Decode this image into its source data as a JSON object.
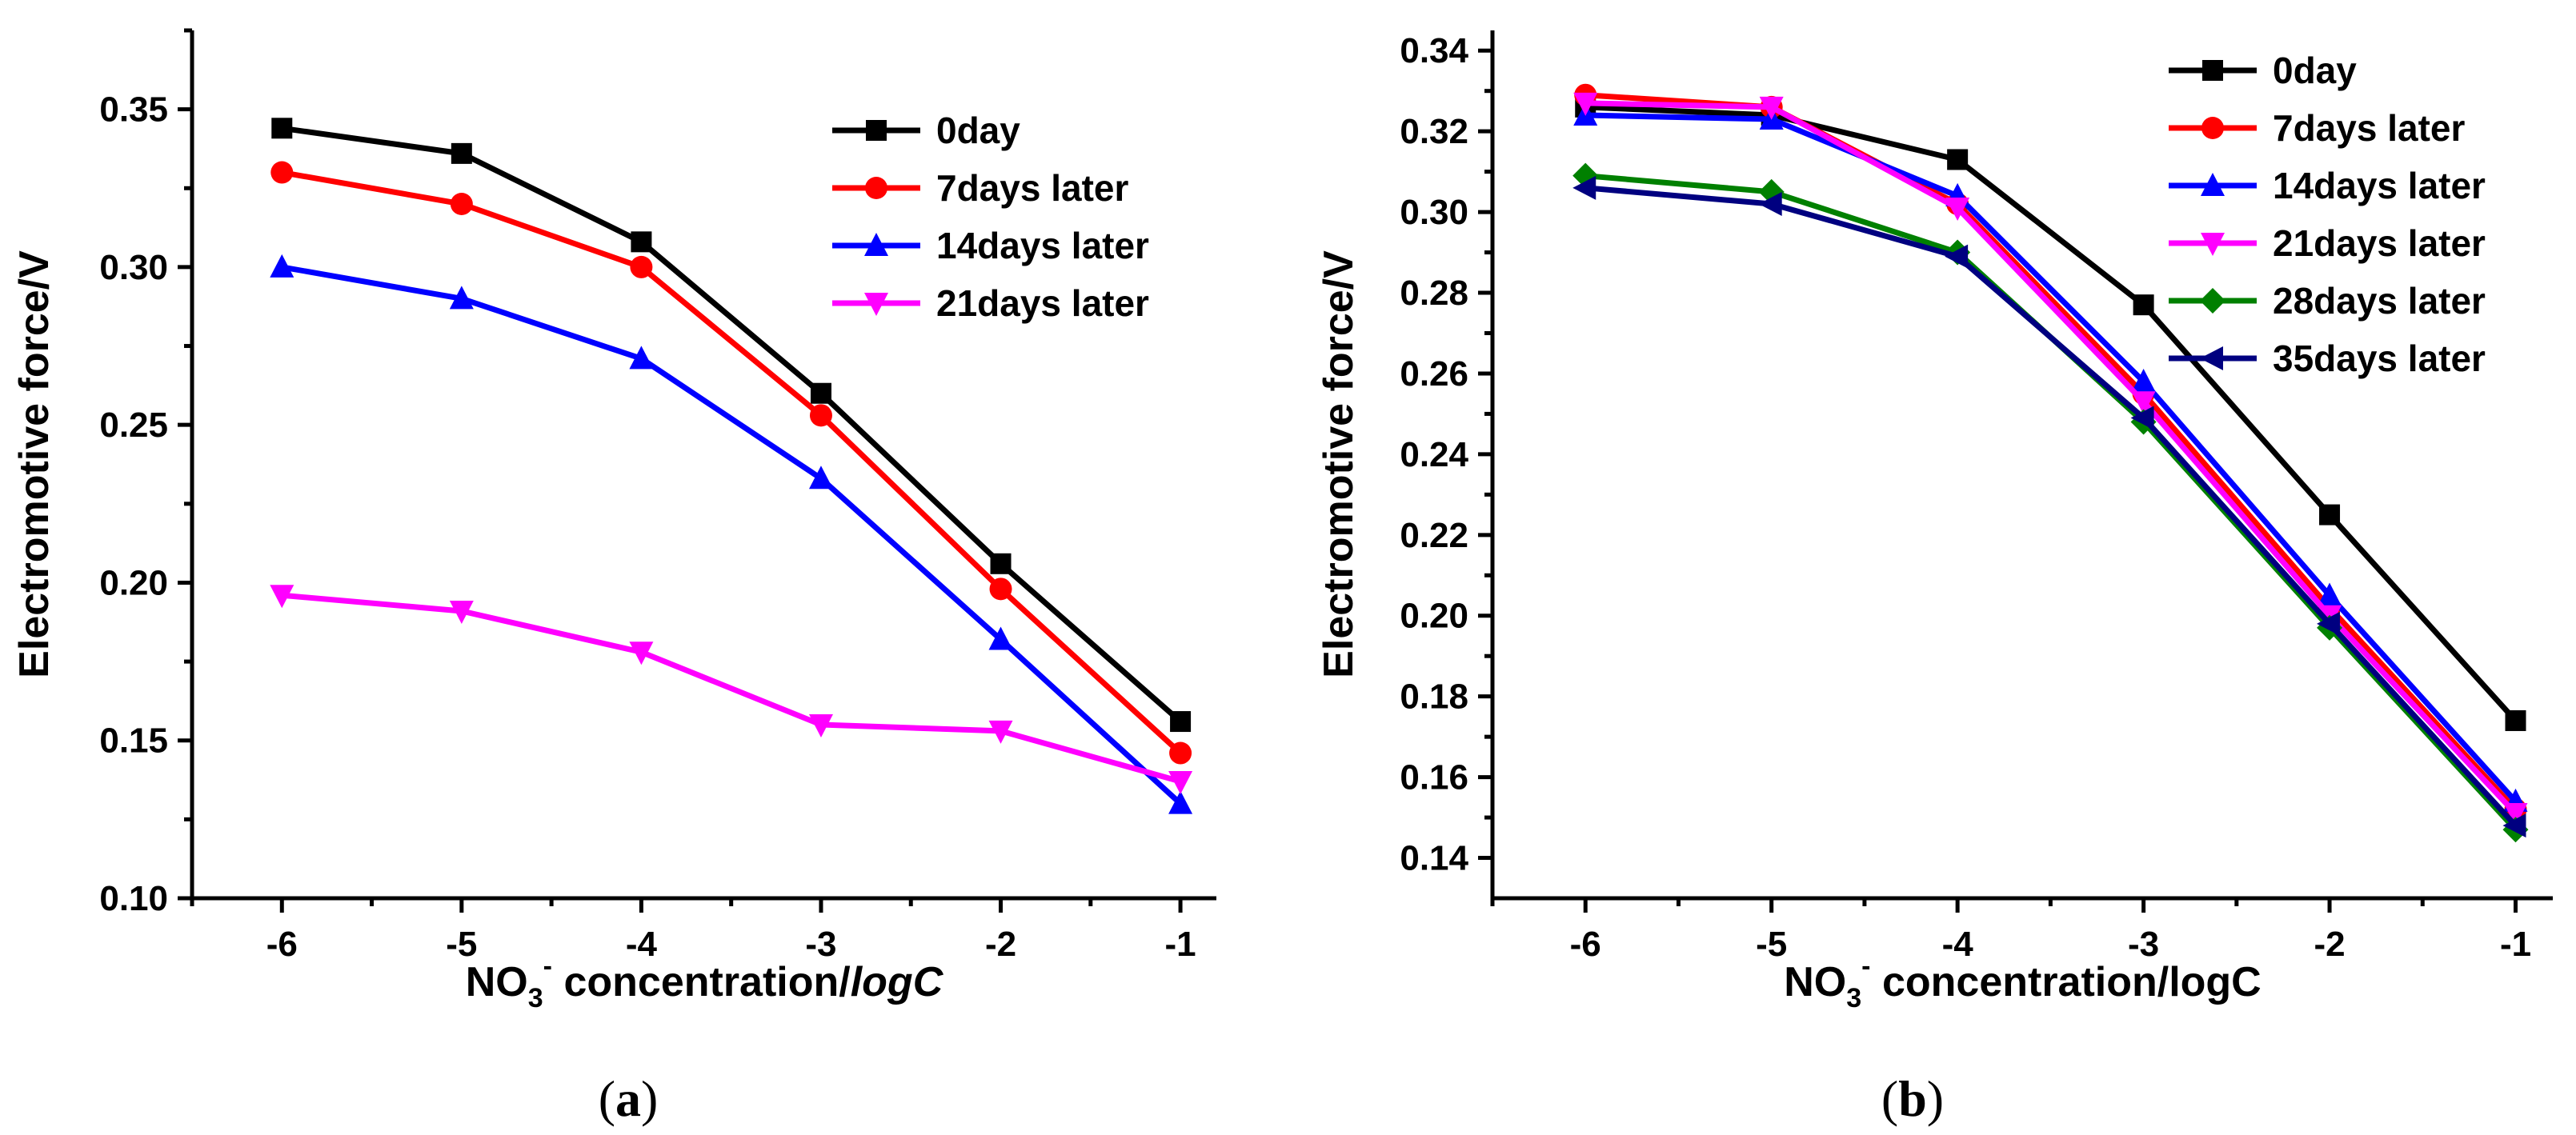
{
  "chart_data": [
    {
      "type": "line",
      "caption": "(a)",
      "xlabel": {
        "base": "NO",
        "sub": "3",
        "sup": "-",
        "rest": " concentration/",
        "italic": "logC"
      },
      "ylabel": "Electromotive force/V",
      "x": [
        -6,
        -5,
        -4,
        -3,
        -2,
        -1
      ],
      "xticks": [
        "-6",
        "-5",
        "-4",
        "-3",
        "-2",
        "-1"
      ],
      "xlim": [
        -6.5,
        -0.8
      ],
      "ylim": [
        0.1,
        0.375
      ],
      "yticks": [
        0.1,
        0.15,
        0.2,
        0.25,
        0.3,
        0.35
      ],
      "ytick_labels": [
        "0.10",
        "0.15",
        "0.20",
        "0.25",
        "0.30",
        "0.35"
      ],
      "legend_position": "top-right",
      "series": [
        {
          "name": "0day",
          "color": "#000000",
          "marker": "square",
          "values": [
            0.344,
            0.336,
            0.308,
            0.26,
            0.206,
            0.156
          ]
        },
        {
          "name": "7days later",
          "color": "#ff0000",
          "marker": "circle",
          "values": [
            0.33,
            0.32,
            0.3,
            0.253,
            0.198,
            0.146
          ]
        },
        {
          "name": "14days later",
          "color": "#0000ff",
          "marker": "triangle-up",
          "values": [
            0.3,
            0.29,
            0.271,
            0.233,
            0.182,
            0.13
          ]
        },
        {
          "name": "21days later",
          "color": "#ff00ff",
          "marker": "triangle-down",
          "values": [
            0.196,
            0.191,
            0.178,
            0.155,
            0.153,
            0.137
          ]
        }
      ]
    },
    {
      "type": "line",
      "caption": "(b)",
      "xlabel": {
        "base": "NO",
        "sub": "3",
        "sup": "-",
        "rest": " concentration/logC",
        "italic": ""
      },
      "ylabel": "Electromotive force/V",
      "x": [
        -6,
        -5,
        -4,
        -3,
        -2,
        -1
      ],
      "xticks": [
        "-6",
        "-5",
        "-4",
        "-3",
        "-2",
        "-1"
      ],
      "xlim": [
        -6.5,
        -0.8
      ],
      "ylim": [
        0.13,
        0.345
      ],
      "yticks": [
        0.14,
        0.16,
        0.18,
        0.2,
        0.22,
        0.24,
        0.26,
        0.28,
        0.3,
        0.32,
        0.34
      ],
      "ytick_labels": [
        "0.14",
        "0.16",
        "0.18",
        "0.20",
        "0.22",
        "0.24",
        "0.26",
        "0.28",
        "0.30",
        "0.32",
        "0.34"
      ],
      "legend_position": "top-right",
      "series": [
        {
          "name": "0day",
          "color": "#000000",
          "marker": "square",
          "values": [
            0.326,
            0.324,
            0.313,
            0.277,
            0.225,
            0.174
          ]
        },
        {
          "name": "7days later",
          "color": "#ff0000",
          "marker": "circle",
          "values": [
            0.329,
            0.326,
            0.302,
            0.255,
            0.202,
            0.152
          ]
        },
        {
          "name": "14days later",
          "color": "#0000ff",
          "marker": "triangle-up",
          "values": [
            0.324,
            0.323,
            0.304,
            0.258,
            0.205,
            0.154
          ]
        },
        {
          "name": "21days later",
          "color": "#ff00ff",
          "marker": "triangle-down",
          "values": [
            0.327,
            0.326,
            0.301,
            0.253,
            0.2,
            0.151
          ]
        },
        {
          "name": "28days later",
          "color": "#008000",
          "marker": "diamond",
          "values": [
            0.309,
            0.305,
            0.29,
            0.248,
            0.197,
            0.147
          ]
        },
        {
          "name": "35days later",
          "color": "#000080",
          "marker": "triangle-left",
          "values": [
            0.306,
            0.302,
            0.289,
            0.249,
            0.198,
            0.148
          ]
        }
      ]
    }
  ]
}
